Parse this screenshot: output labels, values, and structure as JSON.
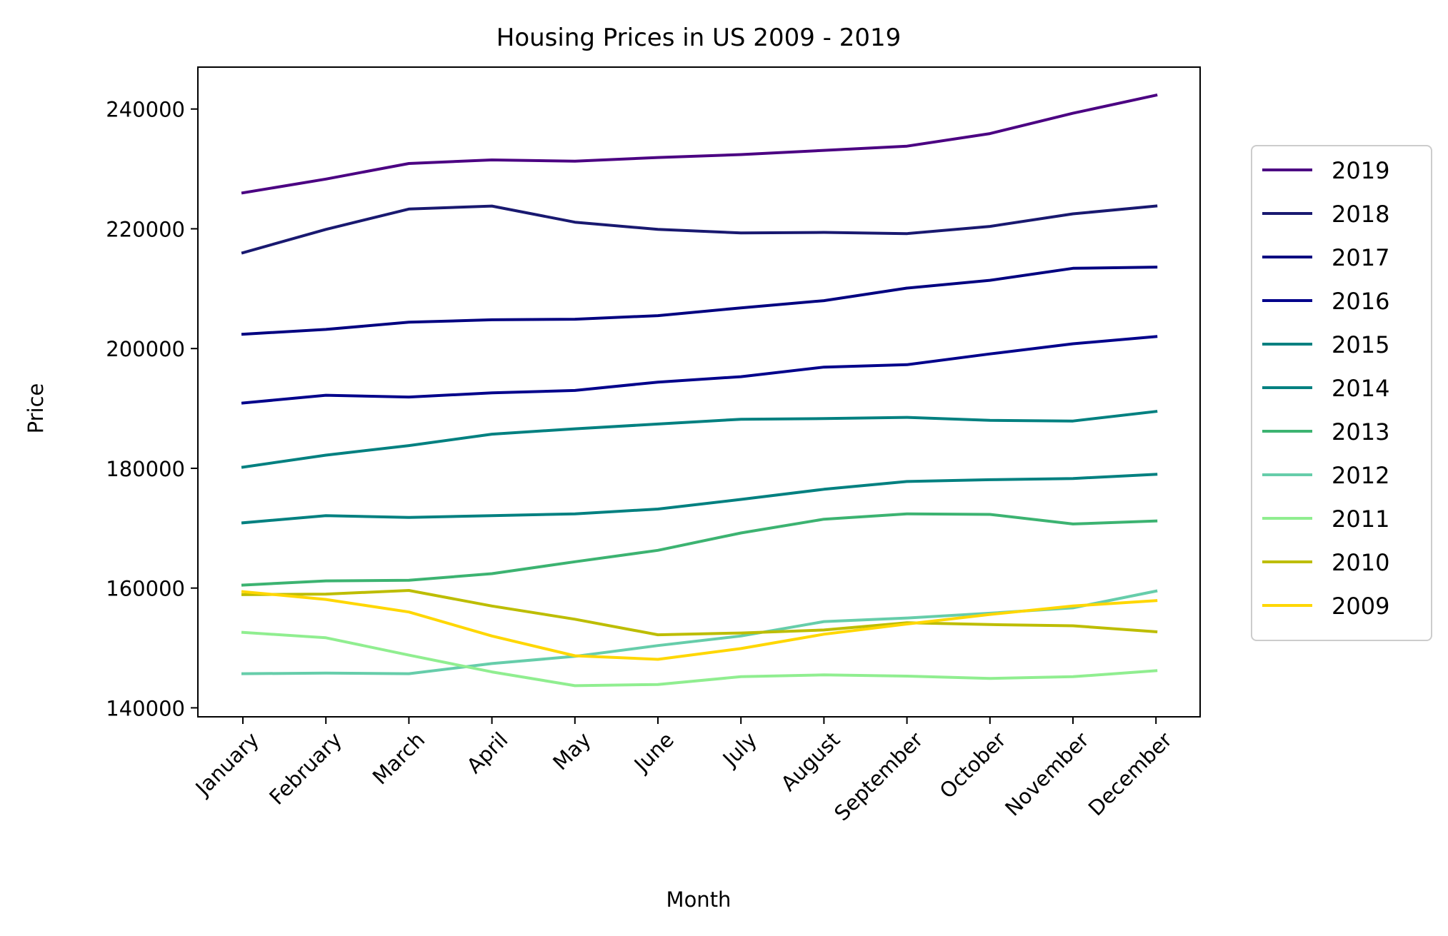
{
  "chart_data": {
    "type": "line",
    "title": "Housing Prices in US 2009 - 2019",
    "xlabel": "Month",
    "ylabel": "Price",
    "categories": [
      "January",
      "February",
      "March",
      "April",
      "May",
      "June",
      "July",
      "August",
      "September",
      "October",
      "November",
      "December"
    ],
    "ylim": [
      138500,
      247000
    ],
    "yticks": [
      140000,
      160000,
      180000,
      200000,
      220000,
      240000
    ],
    "grid": false,
    "legend_position": "right, outside plot",
    "series": [
      {
        "name": "2019",
        "color": "#4b0082",
        "values": [
          226000,
          228300,
          230900,
          231500,
          231300,
          231900,
          232400,
          233100,
          233800,
          235900,
          239300,
          242300
        ]
      },
      {
        "name": "2018",
        "color": "#191970",
        "values": [
          216000,
          219900,
          223300,
          223800,
          221100,
          219900,
          219300,
          219400,
          219200,
          220400,
          222500,
          223800
        ]
      },
      {
        "name": "2017",
        "color": "#000080",
        "values": [
          202400,
          203200,
          204400,
          204800,
          204900,
          205500,
          206800,
          208000,
          210100,
          211400,
          213400,
          213600
        ]
      },
      {
        "name": "2016",
        "color": "#00008b",
        "values": [
          190900,
          192200,
          191900,
          192600,
          193000,
          194400,
          195300,
          196900,
          197300,
          199100,
          200800,
          202000
        ]
      },
      {
        "name": "2015",
        "color": "#008080",
        "values": [
          170900,
          172100,
          171800,
          172100,
          172400,
          173200,
          174800,
          176500,
          177800,
          178100,
          178300,
          179000
        ]
      },
      {
        "name": "2014",
        "color": "#008080",
        "values": [
          180200,
          182200,
          183800,
          185700,
          186600,
          187400,
          188200,
          188300,
          188500,
          188000,
          187900,
          189500
        ]
      },
      {
        "name": "2013",
        "color": "#3cb371",
        "values": [
          160500,
          161200,
          161300,
          162400,
          164400,
          166300,
          169200,
          171500,
          172400,
          172300,
          170700,
          171200
        ]
      },
      {
        "name": "2012",
        "color": "#66cdaa",
        "values": [
          145700,
          145800,
          145700,
          147400,
          148600,
          150400,
          152000,
          154400,
          155000,
          155800,
          156700,
          159500
        ]
      },
      {
        "name": "2011",
        "color": "#90ee90",
        "values": [
          152600,
          151700,
          148800,
          146000,
          143700,
          143900,
          145200,
          145500,
          145300,
          144900,
          145200,
          146200
        ]
      },
      {
        "name": "2010",
        "color": "#bdbd00",
        "values": [
          158900,
          159000,
          159600,
          157000,
          154800,
          152200,
          152500,
          153000,
          154200,
          153900,
          153700,
          152700
        ]
      },
      {
        "name": "2009",
        "color": "#ffd700",
        "values": [
          159400,
          158100,
          156000,
          152000,
          148700,
          148100,
          149900,
          152300,
          154000,
          155600,
          157000,
          157900
        ]
      }
    ]
  }
}
